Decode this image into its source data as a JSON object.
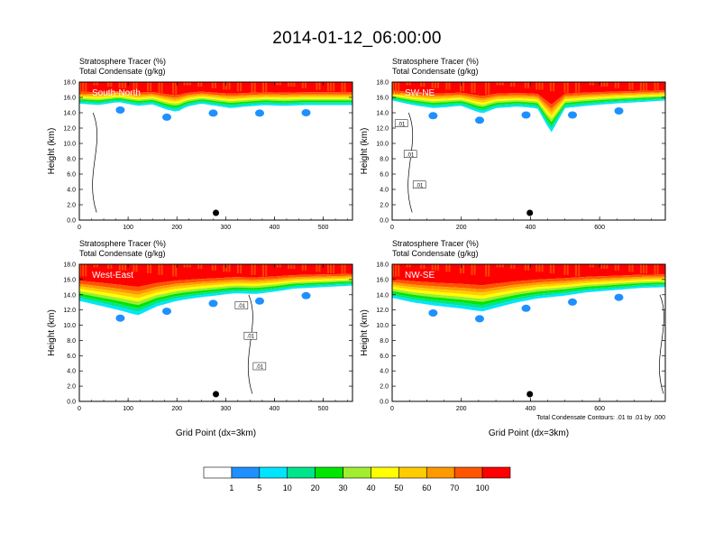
{
  "title": "2014-01-12_06:00:00",
  "colorbar": {
    "levels": [
      "1",
      "5",
      "10",
      "20",
      "30",
      "40",
      "50",
      "60",
      "70",
      "100"
    ],
    "colors": [
      "#ffffff",
      "#1e90ff",
      "#00e5ff",
      "#00e58a",
      "#00e600",
      "#a0ee30",
      "#ffff00",
      "#ffcc00",
      "#ff9900",
      "#ff5500",
      "#ff0000"
    ]
  },
  "chart_data": [
    {
      "type": "heatmap",
      "section": "South-North",
      "header": [
        "Stratosphere Tracer   (%)",
        "Total Condensate   (g/kg)"
      ],
      "ylabel": "Height (km)",
      "xlabel": "",
      "xlim": [
        0,
        560
      ],
      "ylim": [
        0,
        18
      ],
      "xticks": [
        "0",
        "100",
        "200",
        "300",
        "400",
        "500"
      ],
      "yticks": [
        "0.0",
        "2.0",
        "4.0",
        "6.0",
        "8.0",
        "10.0",
        "12.0",
        "14.0",
        "16.0",
        "18.0"
      ],
      "tracer_base_km": [
        [
          0,
          15.2
        ],
        [
          40,
          15.0
        ],
        [
          80,
          15.4
        ],
        [
          120,
          14.9
        ],
        [
          150,
          15.1
        ],
        [
          180,
          14.4
        ],
        [
          200,
          14.1
        ],
        [
          220,
          14.8
        ],
        [
          250,
          15.2
        ],
        [
          280,
          14.9
        ],
        [
          310,
          14.6
        ],
        [
          340,
          14.8
        ],
        [
          380,
          15.0
        ],
        [
          420,
          14.9
        ],
        [
          460,
          15.0
        ],
        [
          500,
          15.0
        ],
        [
          560,
          15.0
        ]
      ],
      "terrain_marker_x": 280,
      "contour_labels": []
    },
    {
      "type": "heatmap",
      "section": "SW-NE",
      "header": [
        "Stratosphere Tracer   (%)",
        "Total Condensate   (g/kg)"
      ],
      "ylabel": "Height (km)",
      "xlabel": "",
      "xlim": [
        0,
        790
      ],
      "ylim": [
        0,
        18
      ],
      "xticks": [
        "0",
        "200",
        "400",
        "600"
      ],
      "yticks": [
        "0.0",
        "2.0",
        "4.0",
        "6.0",
        "8.0",
        "10.0",
        "12.0",
        "14.0",
        "16.0",
        "18.0"
      ],
      "tracer_base_km": [
        [
          0,
          15.6
        ],
        [
          60,
          15.0
        ],
        [
          120,
          14.6
        ],
        [
          200,
          14.9
        ],
        [
          260,
          13.9
        ],
        [
          300,
          14.6
        ],
        [
          360,
          14.8
        ],
        [
          420,
          14.6
        ],
        [
          460,
          11.4
        ],
        [
          500,
          14.6
        ],
        [
          560,
          14.9
        ],
        [
          640,
          15.2
        ],
        [
          720,
          15.4
        ],
        [
          790,
          15.6
        ]
      ],
      "terrain_marker_x": 398,
      "contour_labels": [
        ".01",
        ".01",
        ".01"
      ]
    },
    {
      "type": "heatmap",
      "section": "West-East",
      "header": [
        "Stratosphere Tracer   (%)",
        "Total Condensate   (g/kg)"
      ],
      "ylabel": "Height (km)",
      "xlabel": "Grid Point (dx=3km)",
      "xlim": [
        0,
        560
      ],
      "ylim": [
        0,
        18
      ],
      "xticks": [
        "0",
        "100",
        "200",
        "300",
        "400",
        "500"
      ],
      "yticks": [
        "0.0",
        "2.0",
        "4.0",
        "6.0",
        "8.0",
        "10.0",
        "12.0",
        "14.0",
        "16.0",
        "18.0"
      ],
      "tracer_base_km": [
        [
          0,
          13.2
        ],
        [
          40,
          12.6
        ],
        [
          80,
          12.0
        ],
        [
          120,
          11.3
        ],
        [
          160,
          12.5
        ],
        [
          200,
          13.2
        ],
        [
          240,
          13.6
        ],
        [
          280,
          13.9
        ],
        [
          320,
          14.2
        ],
        [
          360,
          14.1
        ],
        [
          400,
          14.4
        ],
        [
          440,
          14.8
        ],
        [
          500,
          15.0
        ],
        [
          560,
          15.2
        ]
      ],
      "terrain_marker_x": 280,
      "contour_labels": [
        ".01",
        ".01",
        ".01"
      ]
    },
    {
      "type": "heatmap",
      "section": "NW-SE",
      "header": [
        "Stratosphere Tracer   (%)",
        "Total Condensate   (g/kg)"
      ],
      "ylabel": "Height (km)",
      "xlabel": "Grid Point (dx=3km)",
      "xlim": [
        0,
        790
      ],
      "ylim": [
        0,
        18
      ],
      "xticks": [
        "0",
        "200",
        "400",
        "600"
      ],
      "yticks": [
        "0.0",
        "2.0",
        "4.0",
        "6.0",
        "8.0",
        "10.0",
        "12.0",
        "14.0",
        "16.0",
        "18.0"
      ],
      "tracer_base_km": [
        [
          0,
          13.6
        ],
        [
          60,
          13.0
        ],
        [
          120,
          12.6
        ],
        [
          200,
          12.2
        ],
        [
          260,
          11.8
        ],
        [
          300,
          12.3
        ],
        [
          360,
          13.0
        ],
        [
          420,
          13.5
        ],
        [
          500,
          13.9
        ],
        [
          560,
          14.3
        ],
        [
          640,
          14.6
        ],
        [
          720,
          14.9
        ],
        [
          790,
          15.0
        ]
      ],
      "terrain_marker_x": 398,
      "contour_labels": [],
      "footnote": "Total Condensate Contours: .01 to .01 by .000"
    }
  ]
}
